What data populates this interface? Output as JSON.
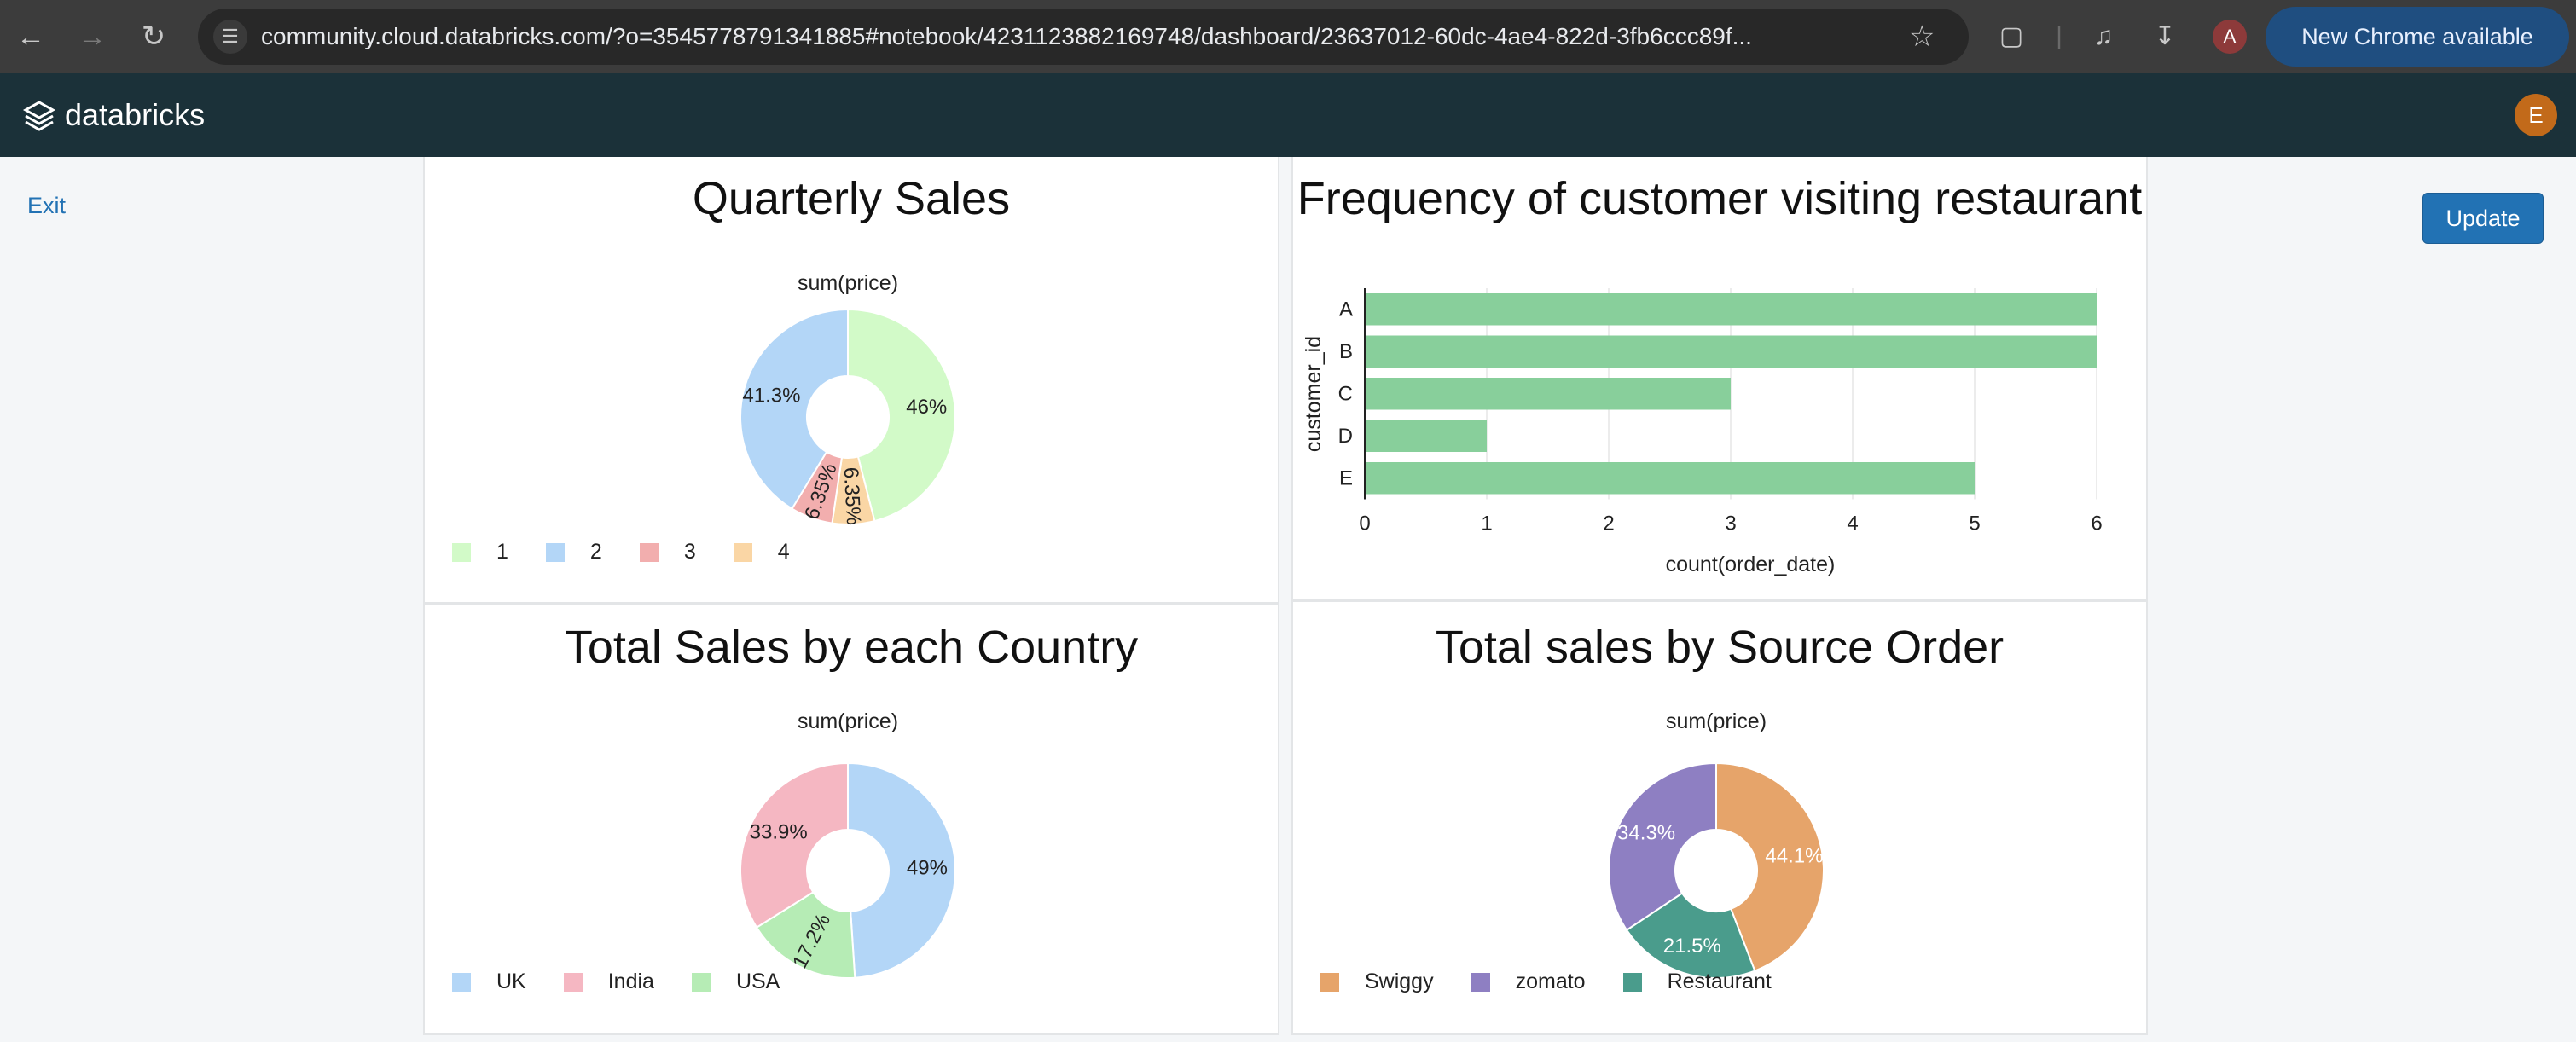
{
  "browser": {
    "url": "community.cloud.databricks.com/?o=3545778791341885#notebook/4231123882169748/dashboard/23637012-60dc-4ae4-822d-3fb6ccc89f...",
    "profile_initial": "A",
    "new_chrome_label": "New Chrome available"
  },
  "app": {
    "brand": "databricks",
    "user_initial": "E",
    "exit_label": "Exit",
    "update_label": "Update"
  },
  "colors": {
    "header_bg": "#1b3139",
    "accent": "#2272b4"
  },
  "charts": {
    "quarterly": {
      "title": "Quarterly Sales",
      "measure_label": "sum(price)",
      "legend": [
        "1",
        "2",
        "3",
        "4"
      ]
    },
    "frequency": {
      "title": "Frequency of customer visiting restaurant",
      "xlabel": "count(order_date)",
      "ylabel": "customer_id"
    },
    "country": {
      "title": "Total Sales by each Country",
      "measure_label": "sum(price)",
      "legend": [
        "UK",
        "India",
        "USA"
      ]
    },
    "source": {
      "title": "Total sales by Source Order",
      "measure_label": "sum(price)",
      "legend": [
        "Swiggy",
        "zomato",
        "Restaurant"
      ]
    }
  },
  "chart_data": [
    {
      "type": "pie",
      "id": "quarterly",
      "categories": [
        "1",
        "2",
        "3",
        "4"
      ],
      "values": [
        46,
        41.3,
        6.35,
        6.35
      ],
      "labels": [
        "46%",
        "41.3%",
        "6.35%",
        "6.35%"
      ],
      "order": [
        0,
        3,
        2,
        1
      ],
      "colors": [
        "#d2fac8",
        "#b3d6f7",
        "#f2aeae",
        "#fad6a5"
      ],
      "label_color": "#222222"
    },
    {
      "type": "bar",
      "id": "frequency",
      "orientation": "horizontal",
      "categories": [
        "A",
        "B",
        "C",
        "D",
        "E"
      ],
      "values": [
        6,
        6,
        3,
        1,
        5
      ],
      "xlim": [
        0,
        6
      ],
      "xticks": [
        "0",
        "1",
        "2",
        "3",
        "4",
        "5",
        "6"
      ],
      "color": "#88cf9b",
      "grid": true
    },
    {
      "type": "pie",
      "id": "country",
      "categories": [
        "UK",
        "India",
        "USA"
      ],
      "values": [
        49,
        33.9,
        17.2
      ],
      "labels": [
        "49%",
        "33.9%",
        "17.2%"
      ],
      "order": [
        0,
        2,
        1
      ],
      "colors": [
        "#b3d6f7",
        "#f5b7c2",
        "#b6ecb5"
      ],
      "label_color": "#222222"
    },
    {
      "type": "pie",
      "id": "source",
      "categories": [
        "Swiggy",
        "zomato",
        "Restaurant"
      ],
      "values": [
        44.1,
        34.3,
        21.5
      ],
      "labels": [
        "44.1%",
        "34.3%",
        "21.5%"
      ],
      "order": [
        0,
        2,
        1
      ],
      "colors": [
        "#e6a46a",
        "#8e7fc2",
        "#4a9c8c"
      ],
      "label_color": "#ffffff"
    }
  ]
}
